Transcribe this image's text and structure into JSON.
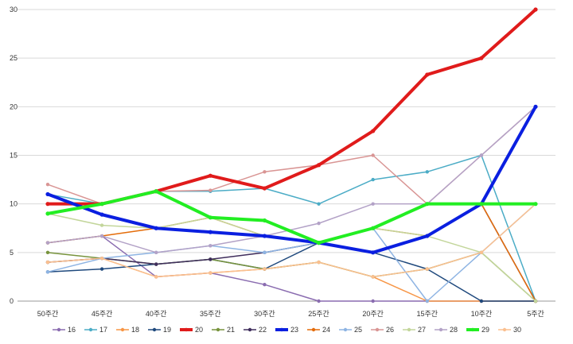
{
  "chart_data": {
    "type": "line",
    "categories": [
      "50주간",
      "45주간",
      "40주간",
      "35주간",
      "30주간",
      "25주간",
      "20주간",
      "15주간",
      "10주간",
      "5주간"
    ],
    "ylim": [
      0,
      30
    ],
    "yticks": [
      "0",
      "5",
      "10",
      "15",
      "20",
      "25",
      "30"
    ],
    "grid": "horizontal",
    "legend_position": "bottom",
    "series": [
      {
        "name": "16",
        "color": "#8a6cb0",
        "bold": false,
        "values": [
          6.0,
          6.7,
          2.5,
          2.9,
          1.7,
          0,
          0,
          0,
          0,
          0
        ]
      },
      {
        "name": "17",
        "color": "#4bacc6",
        "bold": false,
        "values": [
          11.0,
          10.0,
          11.3,
          11.3,
          11.6,
          10.0,
          12.5,
          13.3,
          15.0,
          0
        ]
      },
      {
        "name": "18",
        "color": "#f79646",
        "bold": false,
        "values": [
          4.0,
          4.4,
          2.5,
          2.9,
          3.3,
          4.0,
          2.5,
          0,
          0,
          0
        ]
      },
      {
        "name": "19",
        "color": "#1f497d",
        "bold": false,
        "values": [
          3.0,
          3.3,
          3.8,
          4.3,
          3.3,
          6.0,
          5.0,
          3.3,
          0,
          0
        ]
      },
      {
        "name": "20",
        "color": "#e01b1b",
        "bold": true,
        "values": [
          10.0,
          10.0,
          11.3,
          12.9,
          11.6,
          14.0,
          17.5,
          23.3,
          25.0,
          30.0
        ]
      },
      {
        "name": "21",
        "color": "#77933c",
        "bold": false,
        "values": [
          5.0,
          4.4,
          3.8,
          4.3,
          3.3,
          4.0,
          2.5,
          3.3,
          5.0,
          0
        ]
      },
      {
        "name": "22",
        "color": "#3f2d5c",
        "bold": false,
        "values": [
          4.0,
          4.4,
          3.8,
          4.3,
          5.0,
          6.0,
          5.0,
          6.7,
          10.0,
          0
        ]
      },
      {
        "name": "23",
        "color": "#0a1fe0",
        "bold": true,
        "values": [
          11.0,
          8.9,
          7.5,
          7.1,
          6.7,
          6.0,
          5.0,
          6.7,
          10.0,
          20.0
        ]
      },
      {
        "name": "24",
        "color": "#e46c0a",
        "bold": false,
        "values": [
          6.0,
          6.7,
          7.5,
          8.6,
          6.7,
          6.0,
          7.5,
          6.7,
          10.0,
          0
        ]
      },
      {
        "name": "25",
        "color": "#8eb4e3",
        "bold": false,
        "values": [
          3.0,
          4.4,
          5.0,
          5.7,
          5.0,
          6.0,
          7.5,
          0,
          5.0,
          10.0
        ]
      },
      {
        "name": "26",
        "color": "#d99594",
        "bold": false,
        "values": [
          12.0,
          10.0,
          11.3,
          11.4,
          13.3,
          14.0,
          15.0,
          10.0,
          15.0,
          20.0
        ]
      },
      {
        "name": "27",
        "color": "#c3d69b",
        "bold": false,
        "values": [
          9.0,
          7.8,
          7.5,
          8.6,
          6.7,
          6.0,
          7.5,
          6.7,
          5.0,
          0
        ]
      },
      {
        "name": "28",
        "color": "#b3a2c7",
        "bold": false,
        "values": [
          6.0,
          6.7,
          5.0,
          5.7,
          6.7,
          8.0,
          10.0,
          10.0,
          15.0,
          20.0
        ]
      },
      {
        "name": "29",
        "color": "#22ee22",
        "bold": true,
        "values": [
          9.0,
          10.0,
          11.3,
          8.6,
          8.3,
          6.0,
          7.5,
          10.0,
          10.0,
          10.0
        ]
      },
      {
        "name": "30",
        "color": "#fac090",
        "bold": false,
        "values": [
          4.0,
          4.4,
          2.5,
          2.9,
          3.3,
          4.0,
          2.5,
          3.3,
          5.0,
          10.0
        ]
      }
    ]
  }
}
